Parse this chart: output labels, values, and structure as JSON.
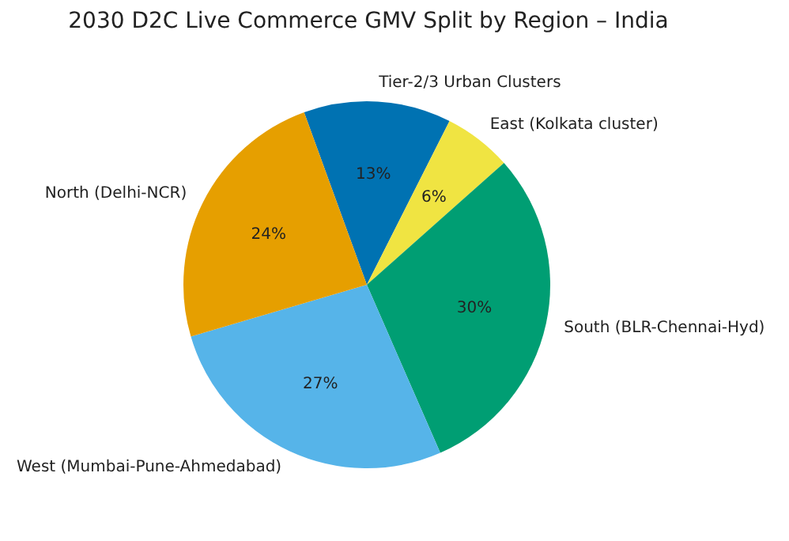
{
  "chart_data": {
    "type": "pie",
    "title": "2030 D2C Live Commerce GMV Split by Region – India",
    "categories": [
      "Tier-2/3 Urban Clusters",
      "East (Kolkata cluster)",
      "South (BLR-Chennai-Hyd)",
      "West (Mumbai-Pune-Ahmedabad)",
      "North (Delhi-NCR)"
    ],
    "values": [
      13,
      6,
      30,
      27,
      24
    ],
    "colors": [
      "#0072b2",
      "#f0e442",
      "#009e73",
      "#56b4e9",
      "#e69f00"
    ],
    "value_labels": [
      "13%",
      "6%",
      "30%",
      "27%",
      "24%"
    ],
    "legend": false
  }
}
